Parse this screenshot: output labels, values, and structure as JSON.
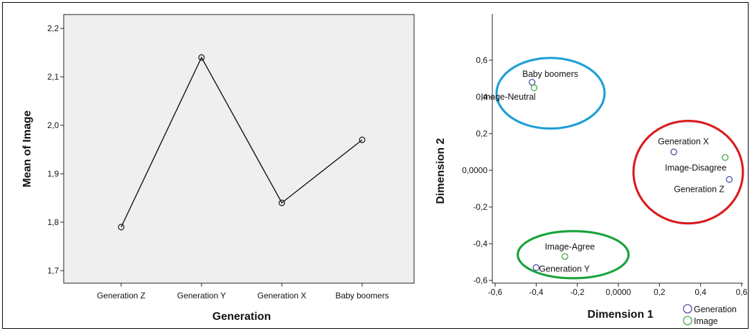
{
  "chart_data": [
    {
      "type": "line",
      "categories": [
        "Generation Z",
        "Generation Y",
        "Generation X",
        "Baby boomers"
      ],
      "values": [
        1.79,
        2.14,
        1.84,
        1.97
      ],
      "xlabel": "Generation",
      "ylabel": "Mean of Image",
      "ylim": [
        1.7,
        2.2
      ],
      "yticks": [
        "1,7",
        "1,8",
        "1,9",
        "2,0",
        "2,1",
        "2,2"
      ],
      "background": "#efefef",
      "grid": false
    },
    {
      "type": "scatter",
      "xlabel": "Dimension 1",
      "ylabel": "Dimension 2",
      "xlim": [
        -0.6,
        0.6
      ],
      "ylim": [
        -0.6,
        0.6
      ],
      "xticks": [
        "-0,6",
        "-0,4",
        "-0,2",
        "0,0000",
        "0,2",
        "0,4",
        "0,6"
      ],
      "yticks": [
        "-0,6",
        "-0,4",
        "-0,2",
        "0,0000",
        "0,2",
        "0,4",
        "0,6"
      ],
      "grid": false,
      "legend_position": "bottom-right",
      "series": [
        {
          "name": "Generation",
          "color": "#4a4aa8",
          "points": [
            {
              "label": "Baby boomers",
              "x": -0.42,
              "y": 0.48
            },
            {
              "label": "Generation X",
              "x": 0.27,
              "y": 0.1
            },
            {
              "label": "Generation Z",
              "x": 0.54,
              "y": -0.05
            },
            {
              "label": "Generation Y",
              "x": -0.4,
              "y": -0.53
            }
          ]
        },
        {
          "name": "Image",
          "color": "#3fa83f",
          "points": [
            {
              "label": "Image-Neutral",
              "x": -0.41,
              "y": 0.45
            },
            {
              "label": "Image-Disagree",
              "x": 0.52,
              "y": 0.07
            },
            {
              "label": "Image-Agree",
              "x": -0.26,
              "y": -0.47
            }
          ]
        }
      ],
      "clusters": [
        {
          "name": "blue-cluster",
          "color": "#1e9fd6"
        },
        {
          "name": "red-cluster",
          "color": "#d81e1e"
        },
        {
          "name": "green-cluster",
          "color": "#1aa33a"
        }
      ]
    }
  ]
}
